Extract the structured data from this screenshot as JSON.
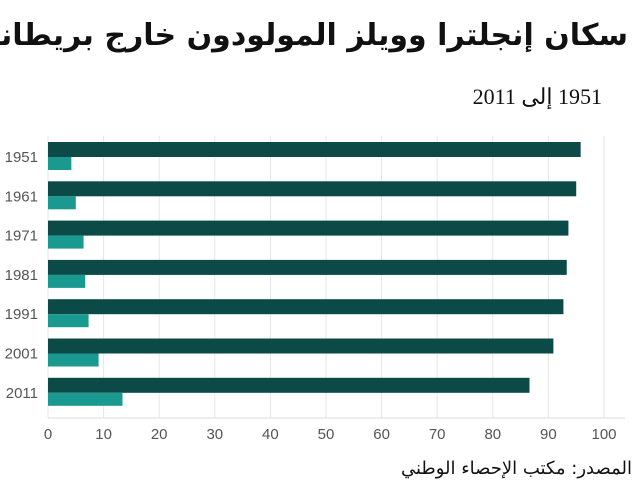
{
  "chart_data": {
    "type": "bar",
    "orientation": "horizontal",
    "title": "سكان إنجلترا وويلز المولودون خارج بريطانيا",
    "subtitle": "1951 إلى 2011",
    "source": "المصدر: مكتب الإحصاء الوطني",
    "categories": [
      "1951",
      "1961",
      "1971",
      "1981",
      "1991",
      "2001",
      "2011"
    ],
    "series": [
      {
        "values": [
          95.8,
          95.0,
          93.6,
          93.3,
          92.7,
          90.9,
          86.6
        ],
        "color": "#0b4a47"
      },
      {
        "values": [
          4.2,
          5.0,
          6.4,
          6.7,
          7.3,
          9.1,
          13.4
        ],
        "color": "#19998f"
      }
    ],
    "xlim": [
      0,
      100
    ],
    "xticks": [
      "0",
      "10",
      "20",
      "30",
      "40",
      "50",
      "60",
      "70",
      "80",
      "90",
      "100"
    ],
    "grid": true,
    "legend": "none"
  }
}
